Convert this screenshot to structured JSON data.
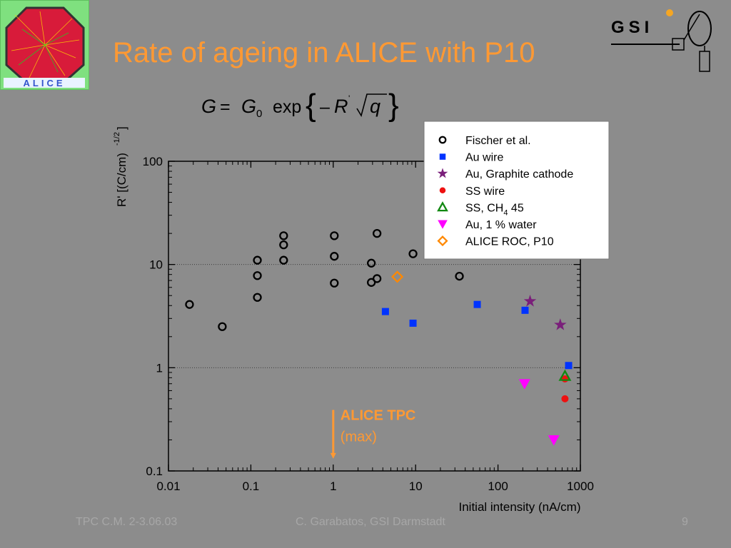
{
  "slide": {
    "title": "Rate of ageing in ALICE with P10",
    "formula": "G = G0 exp{– R' √q}",
    "footer_left": "TPC C.M. 2-3.06.03",
    "footer_center": "C. Garabatos, GSI Darmstadt",
    "footer_right": "9",
    "logo_left_text": "ALICE",
    "logo_right_text": "GSI"
  },
  "chart_data": {
    "type": "scatter",
    "xlabel": "Initial intensity (nA/cm)",
    "ylabel": "R' [(C/cm)-1/2]",
    "xscale": "log",
    "yscale": "log",
    "xlim": [
      0.01,
      1000
    ],
    "ylim": [
      0.1,
      100
    ],
    "x_ticks": [
      "0.01",
      "0.1",
      "1",
      "10",
      "100",
      "1000"
    ],
    "y_ticks": [
      "0.1",
      "1",
      "10",
      "100"
    ],
    "grid": "horizontal dotted at decades",
    "legend_position": "top-right",
    "annotation": {
      "lines": [
        "ALICE TPC",
        "(max)"
      ],
      "x": 1,
      "y_from": 0.14,
      "y_to": 0.39,
      "color": "#ff9933"
    },
    "series": [
      {
        "name": "Fischer et al.",
        "marker": "circle-open",
        "color": "#000000",
        "points": [
          [
            0.018,
            4.1
          ],
          [
            0.045,
            2.5
          ],
          [
            0.12,
            11
          ],
          [
            0.12,
            7.8
          ],
          [
            0.12,
            4.8
          ],
          [
            0.25,
            19
          ],
          [
            0.25,
            15.5
          ],
          [
            0.25,
            11
          ],
          [
            1.03,
            19
          ],
          [
            1.03,
            12
          ],
          [
            1.03,
            6.6
          ],
          [
            2.9,
            10.3
          ],
          [
            2.9,
            6.7
          ],
          [
            3.4,
            20
          ],
          [
            3.4,
            7.3
          ],
          [
            9.3,
            12.7
          ],
          [
            34,
            7.7
          ]
        ]
      },
      {
        "name": "Au wire",
        "marker": "square",
        "color": "#0033ff",
        "points": [
          [
            4.3,
            3.5
          ],
          [
            9.3,
            2.7
          ],
          [
            56,
            4.1
          ],
          [
            213,
            3.6
          ],
          [
            720,
            1.05
          ]
        ]
      },
      {
        "name": "Au, Graphite cathode",
        "marker": "star",
        "color": "#7a1f7a",
        "points": [
          [
            245,
            4.4
          ],
          [
            570,
            2.6
          ]
        ]
      },
      {
        "name": "SS wire",
        "marker": "circle",
        "color": "#ee1111",
        "points": [
          [
            650,
            0.5
          ],
          [
            650,
            0.78
          ]
        ]
      },
      {
        "name": "SS, CH4 45",
        "marker": "triangle-up-open",
        "color": "#118811",
        "points": [
          [
            650,
            0.83
          ]
        ]
      },
      {
        "name": "Au, 1 % water",
        "marker": "triangle-down",
        "color": "#ff00ff",
        "points": [
          [
            210,
            0.7
          ],
          [
            475,
            0.2
          ]
        ]
      },
      {
        "name": "ALICE ROC, P10",
        "marker": "diamond-open",
        "color": "#ff8800",
        "points": [
          [
            6,
            7.6
          ]
        ]
      }
    ]
  }
}
